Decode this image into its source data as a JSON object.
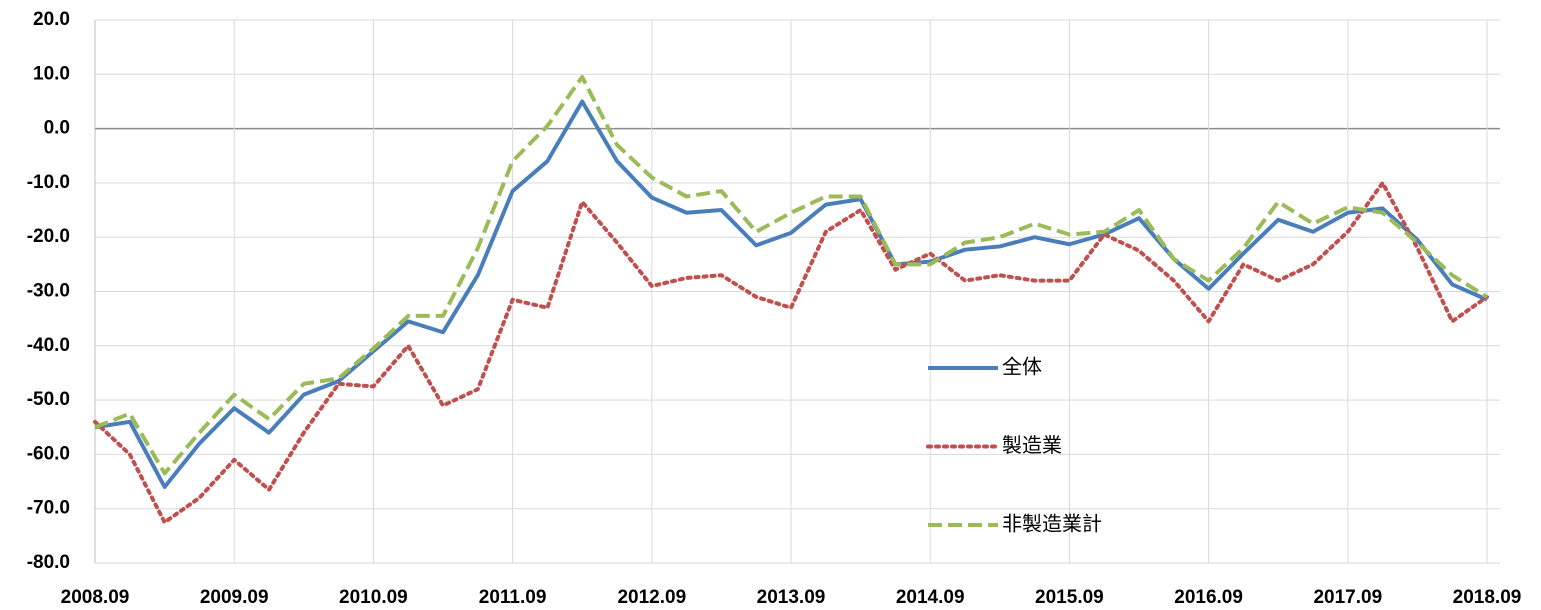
{
  "chart_data": {
    "type": "line",
    "categories": [
      "2008.09",
      null,
      null,
      null,
      "2009.09",
      null,
      null,
      null,
      "2010.09",
      null,
      null,
      null,
      "2011.09",
      null,
      null,
      null,
      "2012.09",
      null,
      null,
      null,
      "2013.09",
      null,
      null,
      null,
      "2014.09",
      null,
      null,
      null,
      "2015.09",
      null,
      null,
      null,
      "2016.09",
      null,
      null,
      null,
      "2017.09",
      null,
      null,
      null,
      "2018.09"
    ],
    "series": [
      {
        "name": "全体",
        "color": "#4a7ebb",
        "style": "solid",
        "values": [
          -55,
          -54,
          -66,
          -58,
          -51.5,
          -56,
          -49,
          -46.5,
          -41,
          -35.5,
          -37.5,
          -27,
          -11.5,
          -6,
          5,
          -6,
          -12.7,
          -15.5,
          -15,
          -21.5,
          -19.2,
          -14,
          -13,
          -25,
          -24.5,
          -22.3,
          -21.7,
          -20,
          -21.3,
          -19.5,
          -16.5,
          -24,
          -29.5,
          -23,
          -16.8,
          -19,
          -15.5,
          -14.7,
          -20.5,
          -28.7,
          -31.5
        ]
      },
      {
        "name": "製造業",
        "color": "#c0504d",
        "style": "dotted",
        "values": [
          -54,
          -60,
          -72.5,
          -68,
          -61,
          -66.5,
          -56,
          -47,
          -47.5,
          -40,
          -51,
          -48,
          -31.5,
          -33,
          -13.5,
          -21,
          -29,
          -27.5,
          -27,
          -31,
          -33,
          -19,
          -15,
          -26,
          -23,
          -28,
          -27,
          -28,
          -28,
          -19.5,
          -22.5,
          -28,
          -35.5,
          -25,
          -28,
          -25,
          -19,
          -10,
          -22,
          -35.5,
          -31
        ]
      },
      {
        "name": "非製造業計",
        "color": "#9bbb59",
        "style": "dashed",
        "values": [
          -55,
          -52.5,
          -63.5,
          -56,
          -49,
          -53.5,
          -47,
          -46,
          -40.5,
          -34.5,
          -34.5,
          -22,
          -6,
          0.5,
          9.5,
          -3,
          -9,
          -12.5,
          -11.5,
          -19,
          -15.5,
          -12.5,
          -12.5,
          -25,
          -25,
          -21,
          -20,
          -17.5,
          -19.5,
          -19,
          -15,
          -24,
          -28,
          -22,
          -13.5,
          -17.5,
          -14.5,
          -15.5,
          -21,
          -27,
          -31
        ]
      }
    ],
    "ylim": [
      -80,
      20
    ],
    "yticks": [
      {
        "value": 20,
        "label": "20.0"
      },
      {
        "value": 10,
        "label": "10.0"
      },
      {
        "value": 0,
        "label": "0.0"
      },
      {
        "value": -10,
        "label": "-10.0"
      },
      {
        "value": -20,
        "label": "-20.0"
      },
      {
        "value": -30,
        "label": "-30.0"
      },
      {
        "value": -40,
        "label": "-40.0"
      },
      {
        "value": -50,
        "label": "-50.0"
      },
      {
        "value": -60,
        "label": "-60.0"
      },
      {
        "value": -70,
        "label": "-70.0"
      },
      {
        "value": -80,
        "label": "-80.0"
      }
    ],
    "grid": true,
    "legend": "center"
  }
}
